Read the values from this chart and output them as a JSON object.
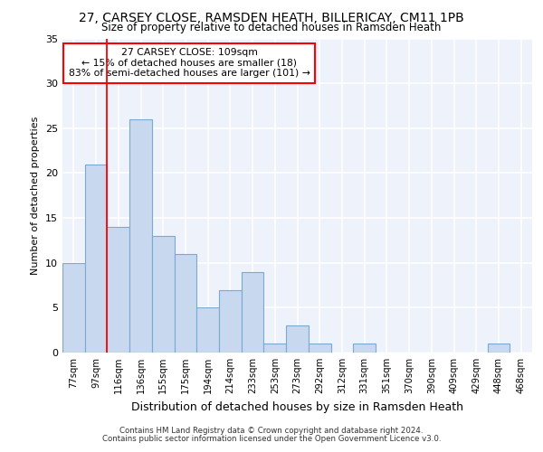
{
  "title1": "27, CARSEY CLOSE, RAMSDEN HEATH, BILLERICAY, CM11 1PB",
  "title2": "Size of property relative to detached houses in Ramsden Heath",
  "xlabel": "Distribution of detached houses by size in Ramsden Heath",
  "ylabel": "Number of detached properties",
  "categories": [
    "77sqm",
    "97sqm",
    "116sqm",
    "136sqm",
    "155sqm",
    "175sqm",
    "194sqm",
    "214sqm",
    "233sqm",
    "253sqm",
    "273sqm",
    "292sqm",
    "312sqm",
    "331sqm",
    "351sqm",
    "370sqm",
    "390sqm",
    "409sqm",
    "429sqm",
    "448sqm",
    "468sqm"
  ],
  "values": [
    10,
    21,
    14,
    26,
    13,
    11,
    5,
    7,
    9,
    1,
    3,
    1,
    0,
    1,
    0,
    0,
    0,
    0,
    0,
    1,
    0
  ],
  "bar_color": "#c8d8ef",
  "bar_edge_color": "#7aaad0",
  "vline_x": 2.0,
  "vline_color": "red",
  "annotation_text": "27 CARSEY CLOSE: 109sqm\n← 15% of detached houses are smaller (18)\n83% of semi-detached houses are larger (101) →",
  "annotation_box_color": "white",
  "annotation_box_edge_color": "red",
  "ylim": [
    0,
    35
  ],
  "yticks": [
    0,
    5,
    10,
    15,
    20,
    25,
    30,
    35
  ],
  "background_color": "#eef2fb",
  "grid_color": "white",
  "footer1": "Contains HM Land Registry data © Crown copyright and database right 2024.",
  "footer2": "Contains public sector information licensed under the Open Government Licence v3.0."
}
